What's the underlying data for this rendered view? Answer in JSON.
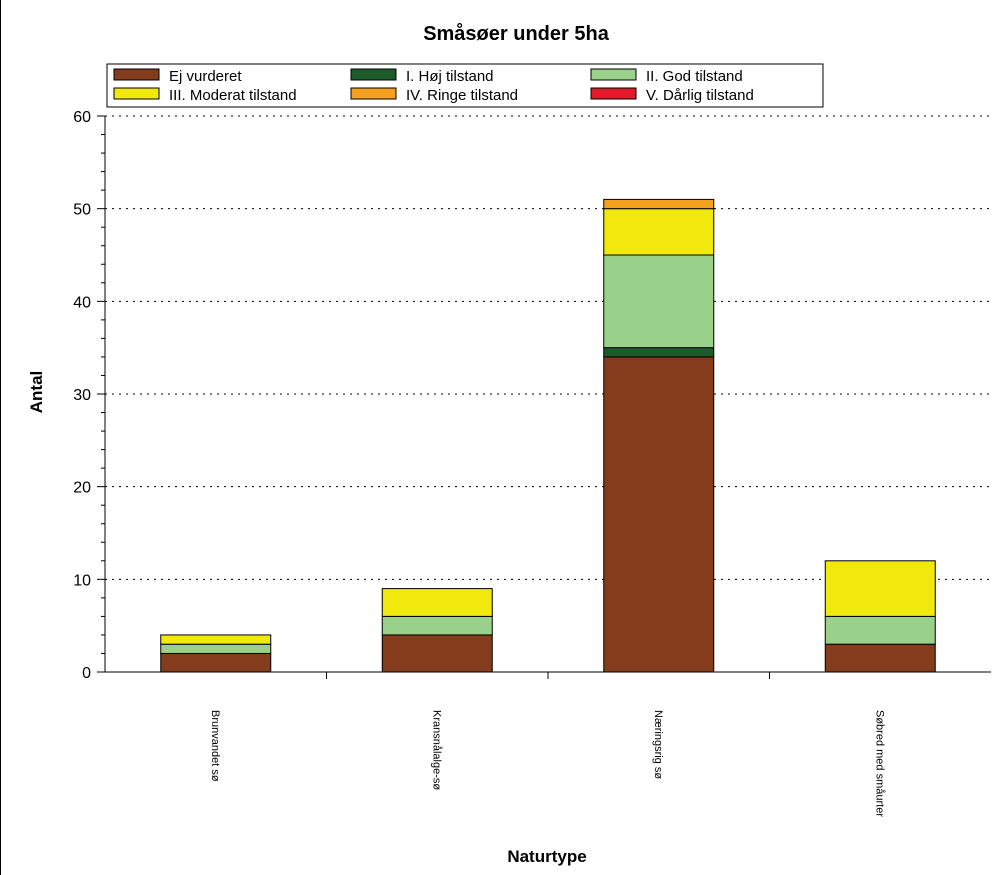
{
  "chart_data": {
    "type": "bar",
    "stacked": true,
    "title": "Småsøer under 5ha",
    "xlabel": "Naturtype",
    "ylabel": "Antal",
    "ylim": [
      0,
      60
    ],
    "yticks": [
      0,
      10,
      20,
      30,
      40,
      50,
      60
    ],
    "grid": true,
    "legend_position": "top",
    "categories": [
      "Brunvandet sø",
      "Kransnålalge-sø",
      "Næringsrig sø",
      "Søbred med småurter"
    ],
    "series": [
      {
        "name": "Ej vurderet",
        "color": "#843c1c",
        "values": [
          2,
          4,
          34,
          3
        ]
      },
      {
        "name": "I. Høj tilstand",
        "color": "#1e5b2b",
        "values": [
          0,
          0,
          1,
          0
        ]
      },
      {
        "name": "II. God tilstand",
        "color": "#99d08a",
        "values": [
          1,
          2,
          10,
          3
        ]
      },
      {
        "name": "III. Moderat tilstand",
        "color": "#f1e80e",
        "values": [
          1,
          3,
          5,
          6
        ]
      },
      {
        "name": "IV. Ringe tilstand",
        "color": "#f4a11f",
        "values": [
          0,
          0,
          1,
          0
        ]
      },
      {
        "name": "V. Dårlig tilstand",
        "color": "#e31a2b",
        "values": [
          0,
          0,
          0,
          0
        ]
      }
    ]
  }
}
